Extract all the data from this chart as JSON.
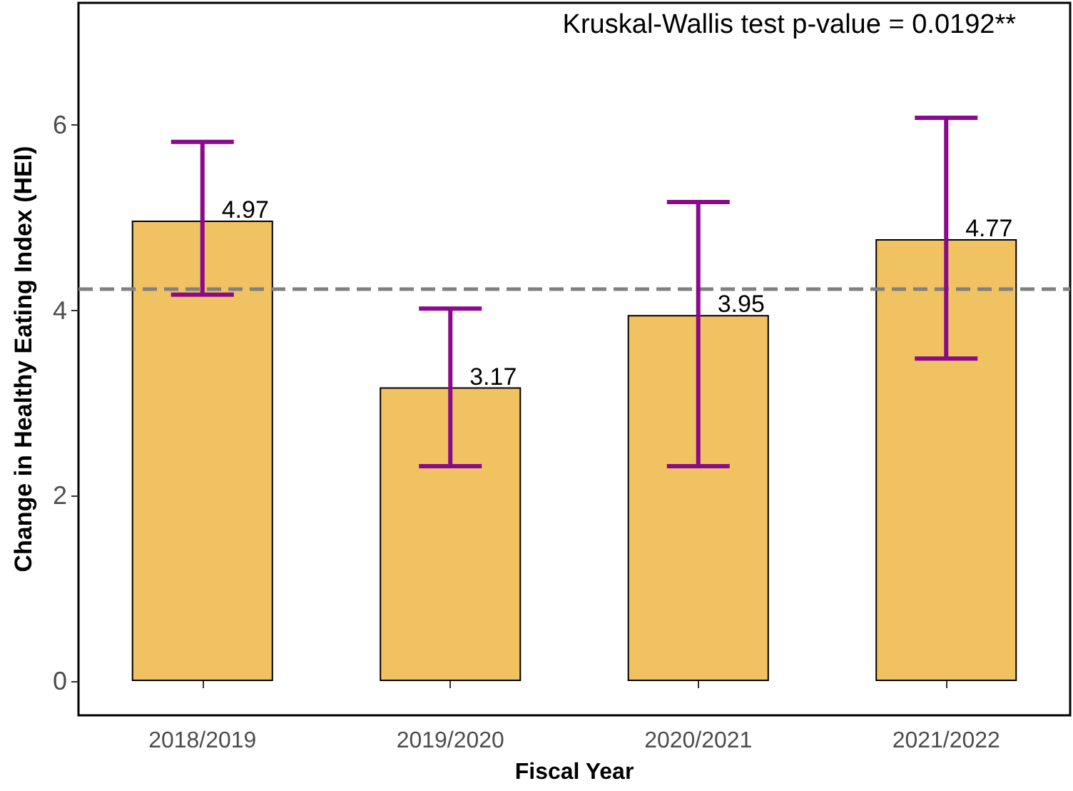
{
  "chart_data": {
    "type": "bar",
    "xlabel": "Fiscal Year",
    "ylabel": "Change in Healthy Eating Index (HEI)",
    "categories": [
      "2018/2019",
      "2019/2020",
      "2020/2021",
      "2021/2022"
    ],
    "values": [
      4.97,
      3.17,
      3.95,
      4.77
    ],
    "color": "#f0c262",
    "errors": [
      [
        4.17,
        5.82
      ],
      [
        2.32,
        4.02
      ],
      [
        2.32,
        5.17
      ],
      [
        3.48,
        6.08
      ]
    ],
    "data_labels": true,
    "ylim": [
      -0.37,
      7.32
    ],
    "yticks": [
      0,
      2,
      4,
      6
    ],
    "grid": false,
    "ref_lines": [
      {
        "axis": "y",
        "value": 4.23,
        "color": "#808080",
        "line_style": "dashed"
      }
    ],
    "annotations": [
      "Kruskal-Wallis test p-value = 0.0192**"
    ]
  }
}
